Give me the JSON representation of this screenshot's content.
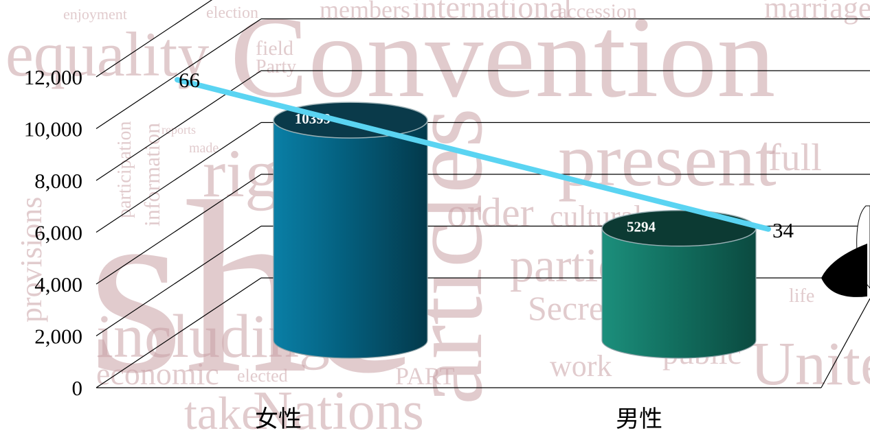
{
  "chart_data": {
    "type": "bar",
    "categories": [
      "女性",
      "男性"
    ],
    "values": [
      10399,
      5294
    ],
    "bar_colors": [
      "#04607f",
      "#127060"
    ],
    "bar_top_colors": [
      "#0a3a4a",
      "#0c3a33"
    ],
    "ylim": [
      0,
      12000
    ],
    "yticks": [
      "0",
      "2,000",
      "4,000",
      "6,000",
      "8,000",
      "10,000",
      "12,000"
    ],
    "grid": true,
    "title": "",
    "xlabel": "",
    "ylabel": "",
    "line_series": {
      "values": [
        66,
        34
      ],
      "labels": [
        "66",
        "34"
      ],
      "color": "#5ad4f2"
    },
    "background_words": [
      "enjoyment",
      "election",
      "members",
      "international",
      "accession",
      "marriage",
      "equality",
      "Convention",
      "field",
      "Party",
      "rights",
      "present",
      "full",
      "she",
      "including",
      "provisions",
      "articles",
      "order",
      "cultural",
      "particular",
      "Secretary",
      "life",
      "work",
      "economic",
      "elected",
      "PART",
      "take",
      "Nations",
      "United",
      "public",
      "participation",
      "information",
      "reports",
      "made"
    ]
  }
}
